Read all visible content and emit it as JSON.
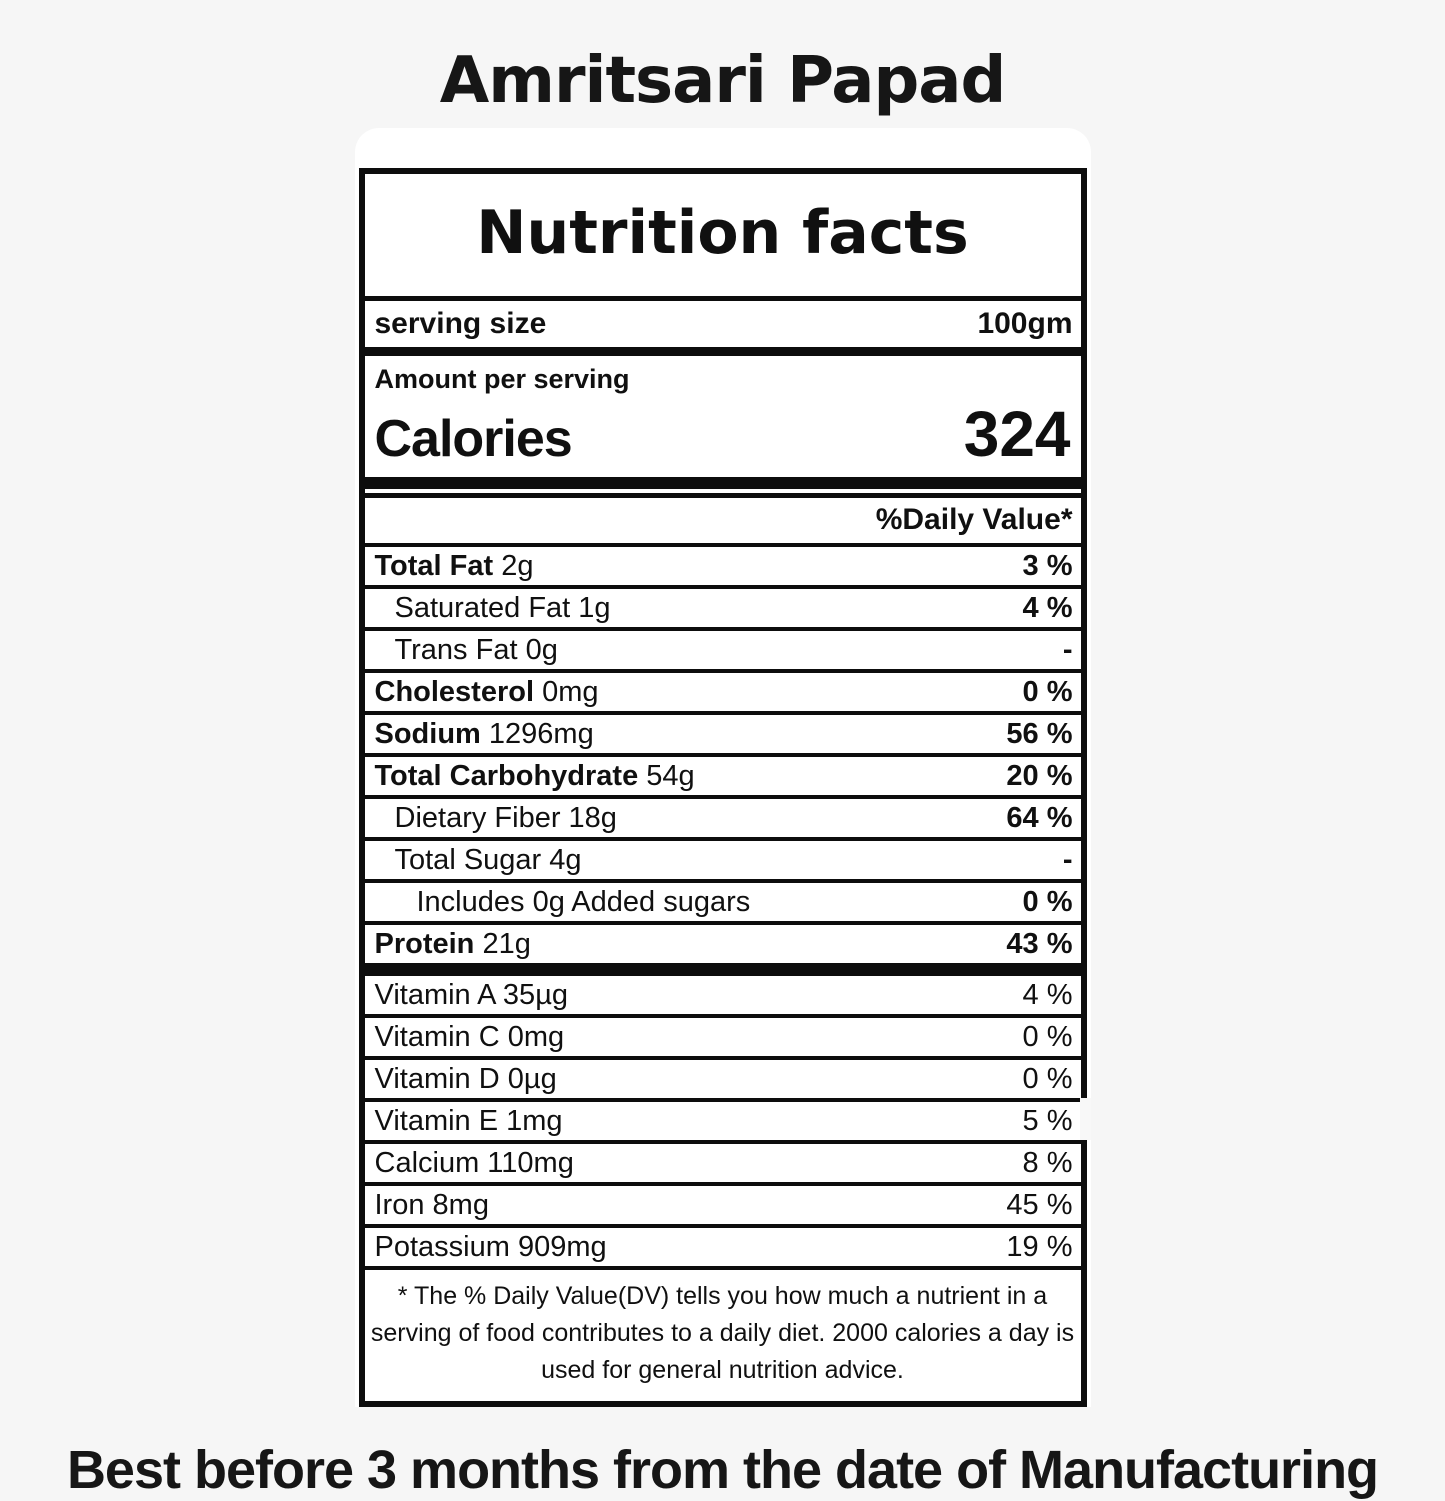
{
  "colors": {
    "bg": "#f6f6f6",
    "ink": "#101010",
    "label-bg": "#ffffff",
    "rule": "#0d0d0d"
  },
  "page": {
    "title": "Amritsari Papad",
    "best_before": "Best before 3 months from the date of Manufacturing"
  },
  "label": {
    "header": "Nutrition facts",
    "serving_size_label": "serving size",
    "serving_size_value": "100gm",
    "amount_per_serving": "Amount per serving",
    "calories_label": "Calories",
    "calories_value": "324",
    "daily_value_header": "%Daily Value*",
    "rows": [
      {
        "bold": "Total Fat",
        "rest": "2g",
        "indent": 0,
        "dv": "3 %",
        "dv_bold": true
      },
      {
        "bold": "",
        "rest": "Saturated Fat 1g",
        "indent": 1,
        "dv": "4 %",
        "dv_bold": true
      },
      {
        "bold": "",
        "rest": "Trans Fat 0g",
        "indent": 1,
        "dv": "-",
        "dv_bold": true
      },
      {
        "bold": "Cholesterol",
        "rest": "0mg",
        "indent": 0,
        "dv": "0 %",
        "dv_bold": true
      },
      {
        "bold": "Sodium",
        "rest": "1296mg",
        "indent": 0,
        "dv": "56 %",
        "dv_bold": true
      },
      {
        "bold": "Total Carbohydrate",
        "rest": "54g",
        "indent": 0,
        "dv": "20 %",
        "dv_bold": true
      },
      {
        "bold": "",
        "rest": "Dietary Fiber 18g",
        "indent": 1,
        "dv": "64 %",
        "dv_bold": true
      },
      {
        "bold": "",
        "rest": "Total Sugar 4g",
        "indent": 1,
        "dv": "-",
        "dv_bold": true
      },
      {
        "bold": "",
        "rest": "Includes 0g Added sugars",
        "indent": 2,
        "dv": "0 %",
        "dv_bold": true
      },
      {
        "bold": "Protein",
        "rest": "21g",
        "indent": 0,
        "dv": "43 %",
        "dv_bold": true,
        "thick_after": true
      },
      {
        "bold": "",
        "rest": "Vitamin A 35µg",
        "indent": 0,
        "dv": "4 %",
        "dv_bold": false
      },
      {
        "bold": "",
        "rest": "Vitamin C 0mg",
        "indent": 0,
        "dv": "0 %",
        "dv_bold": false
      },
      {
        "bold": "",
        "rest": "Vitamin D 0µg",
        "indent": 0,
        "dv": "0 %",
        "dv_bold": false
      },
      {
        "bold": "",
        "rest": "Vitamin E 1mg",
        "indent": 0,
        "dv": "5 %",
        "dv_bold": false,
        "gap_right": true
      },
      {
        "bold": "",
        "rest": "Calcium 110mg",
        "indent": 0,
        "dv": "8 %",
        "dv_bold": false
      },
      {
        "bold": "",
        "rest": "Iron 8mg",
        "indent": 0,
        "dv": "45 %",
        "dv_bold": false
      },
      {
        "bold": "",
        "rest": "Potassium 909mg",
        "indent": 0,
        "dv": "19 %",
        "dv_bold": false
      }
    ],
    "footnote": "* The %  Daily Value(DV) tells you how much a nutrient in a serving of food contributes to a daily diet. 2000 calories a day is used for general nutrition advice."
  }
}
